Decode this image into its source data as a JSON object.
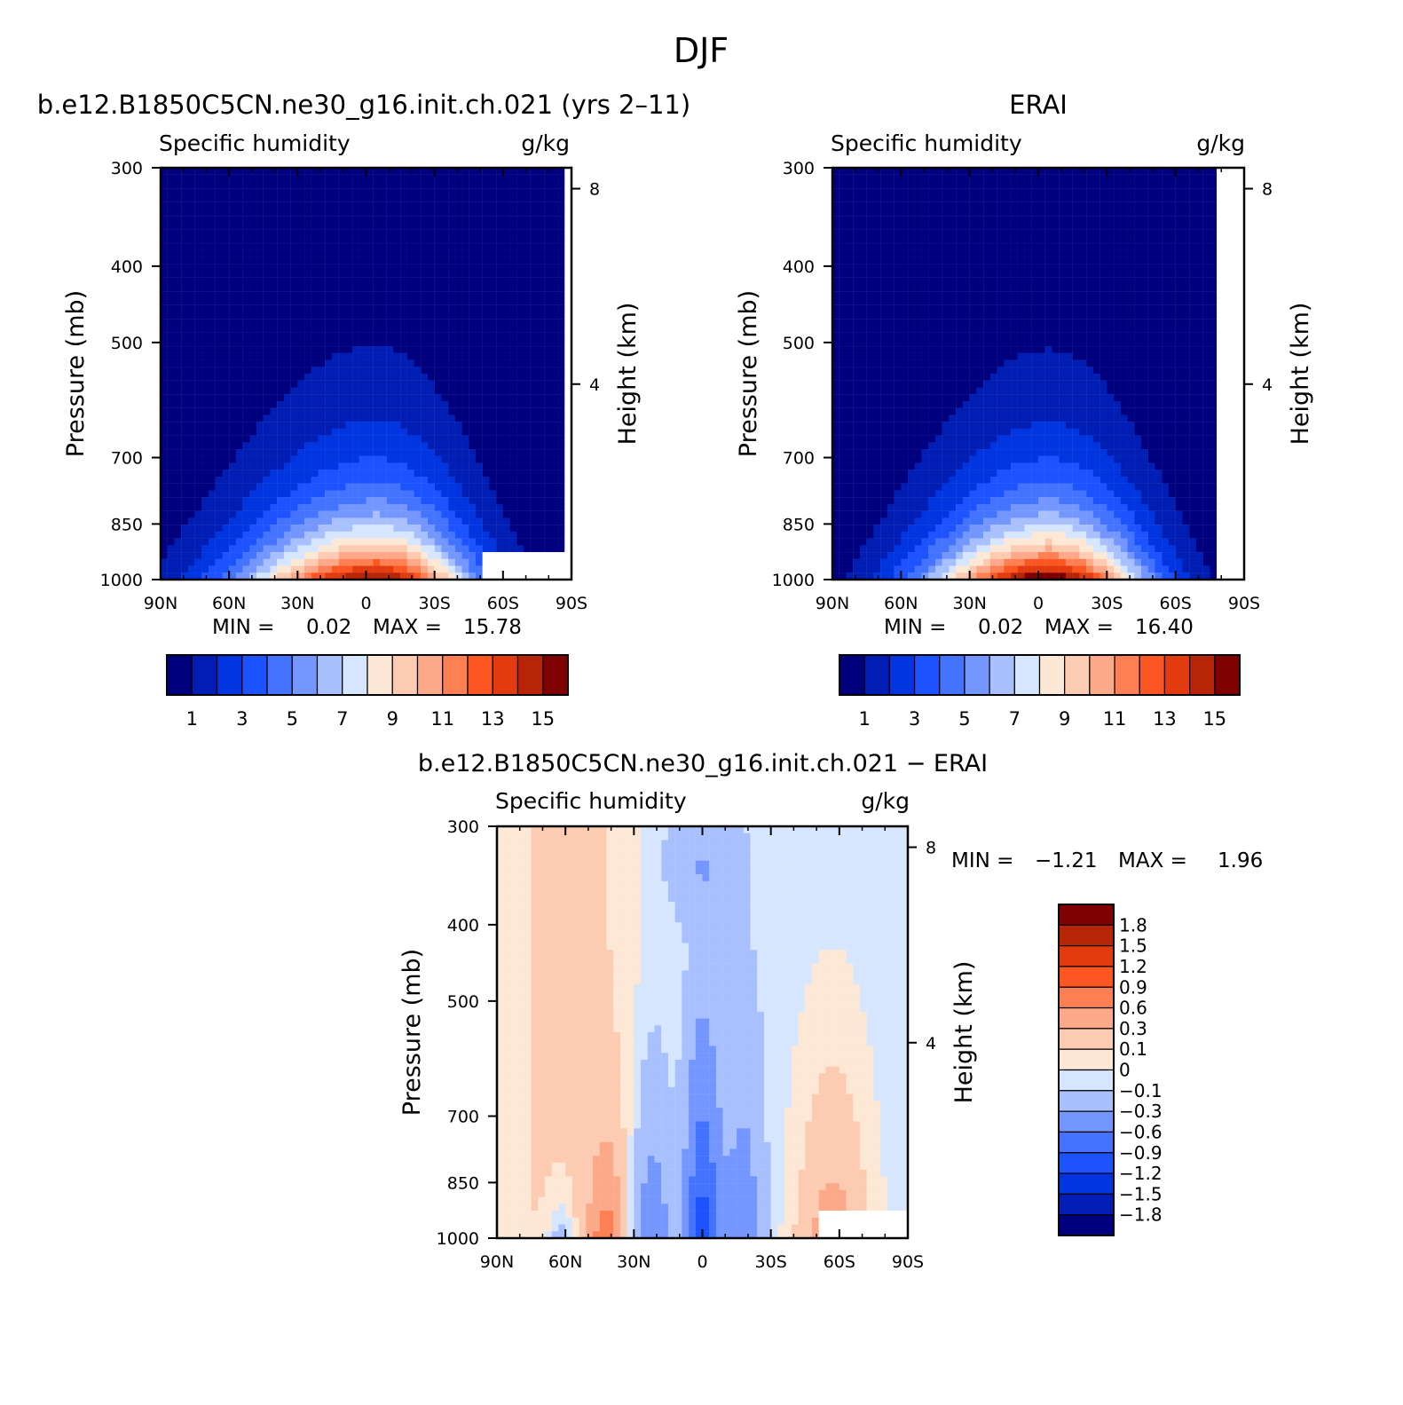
{
  "figure": {
    "title": "DJF"
  },
  "palettes": {
    "seq": [
      "#00007f",
      "#001eb4",
      "#0035e0",
      "#1c53ff",
      "#4474ff",
      "#7496ff",
      "#a9c0ff",
      "#d6e6ff",
      "#fde8d6",
      "#fdcbb1",
      "#fca98a",
      "#fd8055",
      "#fc5723",
      "#e23b0f",
      "#b72406",
      "#7f0000"
    ],
    "div": [
      "#00007f",
      "#001eb4",
      "#0035e0",
      "#1c53ff",
      "#4474ff",
      "#7496ff",
      "#a9c0ff",
      "#d6e6ff",
      "#fde8d6",
      "#fdcbb1",
      "#fca98a",
      "#fd8055",
      "#fc5723",
      "#e23b0f",
      "#b72406",
      "#7f0000"
    ]
  },
  "chart_data": [
    {
      "id": "model",
      "type": "heatmap",
      "title": "b.e12.B1850C5CN.ne30_g16.init.ch.021 (yrs 2–11)",
      "left_string": "Specific humidity",
      "right_string": "g/kg",
      "xlabel": "",
      "ylabel": "Pressure (mb)",
      "ylabel_right": "Height (km)",
      "x_ticks": [
        "90N",
        "60N",
        "30N",
        "0",
        "30S",
        "60S",
        "90S"
      ],
      "x_tick_values": [
        90,
        60,
        30,
        0,
        -30,
        -60,
        -90
      ],
      "xlim": [
        90,
        -90
      ],
      "y_ticks": [
        "300",
        "400",
        "500",
        "700",
        "850",
        "1000"
      ],
      "y_tick_values": [
        300,
        400,
        500,
        700,
        850,
        1000
      ],
      "ylim": [
        300,
        1000
      ],
      "y_scale": "log",
      "y_right_ticks": [
        "8",
        "4"
      ],
      "y_right_tick_values": [
        8,
        4
      ],
      "stats": {
        "min_label": "MIN =",
        "min": "0.02",
        "max_label": "MAX =",
        "max": "15.78"
      },
      "palette": "seq",
      "levels": [
        1,
        2,
        3,
        4,
        5,
        6,
        7,
        8,
        9,
        10,
        11,
        12,
        13,
        14,
        15
      ],
      "colorbar": {
        "orientation": "horizontal",
        "labels": [
          "1",
          "3",
          "5",
          "7",
          "9",
          "11",
          "13",
          "15"
        ]
      },
      "field": {
        "peak": 15.78,
        "peak_lat": -5,
        "sfc_width": 36,
        "scale_height": 180,
        "asym": 0.18,
        "south_cut": -88,
        "mask_lat": -50,
        "mask_p": 925
      }
    },
    {
      "id": "obs",
      "type": "heatmap",
      "title": "ERAI",
      "left_string": "Specific humidity",
      "right_string": "g/kg",
      "xlabel": "",
      "ylabel": "Pressure (mb)",
      "ylabel_right": "Height (km)",
      "x_ticks": [
        "90N",
        "60N",
        "30N",
        "0",
        "30S",
        "60S",
        "90S"
      ],
      "x_tick_values": [
        90,
        60,
        30,
        0,
        -30,
        -60,
        -90
      ],
      "xlim": [
        90,
        -90
      ],
      "y_ticks": [
        "300",
        "400",
        "500",
        "700",
        "850",
        "1000"
      ],
      "y_tick_values": [
        300,
        400,
        500,
        700,
        850,
        1000
      ],
      "ylim": [
        300,
        1000
      ],
      "y_scale": "log",
      "y_right_ticks": [
        "8",
        "4"
      ],
      "y_right_tick_values": [
        8,
        4
      ],
      "stats": {
        "min_label": "MIN =",
        "min": "0.02",
        "max_label": "MAX =",
        "max": "16.40"
      },
      "palette": "seq",
      "levels": [
        1,
        2,
        3,
        4,
        5,
        6,
        7,
        8,
        9,
        10,
        11,
        12,
        13,
        14,
        15
      ],
      "colorbar": {
        "orientation": "horizontal",
        "labels": [
          "1",
          "3",
          "5",
          "7",
          "9",
          "11",
          "13",
          "15"
        ]
      },
      "field": {
        "peak": 16.4,
        "peak_lat": -5,
        "sfc_width": 34,
        "scale_height": 175,
        "asym": 0.12,
        "south_cut": -78,
        "mask_lat": null,
        "mask_p": null
      }
    },
    {
      "id": "diff",
      "type": "heatmap",
      "title": "b.e12.B1850C5CN.ne30_g16.init.ch.021 − ERAI",
      "left_string": "Specific humidity",
      "right_string": "g/kg",
      "xlabel": "",
      "ylabel": "Pressure (mb)",
      "ylabel_right": "Height (km)",
      "x_ticks": [
        "90N",
        "60N",
        "30N",
        "0",
        "30S",
        "60S",
        "90S"
      ],
      "x_tick_values": [
        90,
        60,
        30,
        0,
        -30,
        -60,
        -90
      ],
      "xlim": [
        90,
        -90
      ],
      "y_ticks": [
        "300",
        "400",
        "500",
        "700",
        "850",
        "1000"
      ],
      "y_tick_values": [
        300,
        400,
        500,
        700,
        850,
        1000
      ],
      "ylim": [
        300,
        1000
      ],
      "y_scale": "log",
      "y_right_ticks": [
        "8",
        "4"
      ],
      "y_right_tick_values": [
        8,
        4
      ],
      "stats": {
        "min_label": "MIN =",
        "min": "−1.21",
        "max_label": "MAX =",
        "max": "1.96"
      },
      "palette": "div",
      "levels": [
        -1.8,
        -1.5,
        -1.2,
        -0.9,
        -0.6,
        -0.3,
        -0.1,
        0,
        0.1,
        0.3,
        0.6,
        0.9,
        1.2,
        1.5,
        1.8
      ],
      "colorbar": {
        "orientation": "vertical",
        "labels": [
          "1.8",
          "1.5",
          "1.2",
          "0.9",
          "0.6",
          "0.3",
          "0.1",
          "0",
          "−0.1",
          "−0.3",
          "−0.6",
          "−0.9",
          "−1.2",
          "−1.5",
          "−1.8"
        ]
      },
      "field": {
        "mask_lat": -50,
        "mask_p": 925
      }
    }
  ]
}
